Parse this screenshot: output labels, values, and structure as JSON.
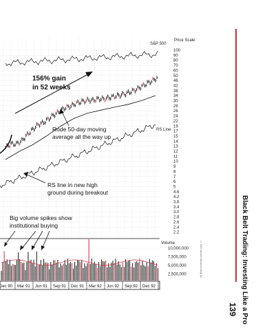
{
  "chart_data": {
    "type": "line",
    "title": "",
    "price_header": "Price Scale",
    "sp500_label": "S&P 500",
    "rs_line_label": "RS Line",
    "volume_header": "Volume",
    "price_scale": [
      "100",
      "90",
      "80",
      "70",
      "60",
      "50",
      "46",
      "42",
      "38",
      "34",
      "30",
      "28",
      "26",
      "24",
      "22",
      "19",
      "17",
      "15",
      "14",
      "13",
      "12",
      "11",
      "10",
      "9",
      "8",
      "7",
      "6",
      "5",
      "4.6",
      "4.2",
      "3.8",
      "3.4",
      "3.0",
      "2.8",
      "2.6",
      "2.4",
      "2.2"
    ],
    "volume_scale": [
      "10,000,000",
      "7,500,000",
      "5,000,000",
      "2,500,000"
    ],
    "x_labels": [
      "Dec 90",
      "Mar 91",
      "Jun 91",
      "Sep 91",
      "Dec 91",
      "Mar 92",
      "Jun 92",
      "Sep 92",
      "Dec 92"
    ],
    "price_series": [
      {
        "name": "Price",
        "x": [
          0,
          4,
          8,
          12,
          16,
          20,
          24,
          28,
          32,
          36,
          40,
          44,
          48,
          52,
          56,
          60,
          64,
          68,
          72,
          76,
          80,
          84,
          88,
          92,
          96,
          100,
          104,
          108,
          112
        ],
        "y": [
          13,
          14,
          14,
          15,
          17,
          19,
          21,
          22,
          24,
          26,
          28,
          30,
          31,
          33,
          34,
          35,
          35,
          36,
          36,
          37,
          38,
          39,
          40,
          42,
          44,
          47,
          50,
          53,
          57
        ]
      },
      {
        "name": "50-day moving average",
        "x": [
          0,
          10,
          20,
          30,
          40,
          50,
          60,
          70,
          80,
          90,
          100,
          110
        ],
        "y": [
          11,
          13,
          15,
          18,
          22,
          26,
          29,
          31,
          33,
          35,
          38,
          42
        ]
      }
    ],
    "annotations": [
      {
        "line1": "156% gain",
        "line2": "in 52 weeks"
      },
      {
        "line1": "Rode 50-day moving",
        "line2": "average all the way up"
      },
      {
        "line1": "RS line in new high",
        "line2": "ground during breakout"
      },
      {
        "line1": "Big volume spikes show",
        "line2": "institutional buying"
      }
    ]
  },
  "sidebar": {
    "book_title": "Black Belt Trading: Investing Like a Pro",
    "page_number": "139",
    "copyright": "© 2003 Investor's Business Daily, Inc."
  }
}
